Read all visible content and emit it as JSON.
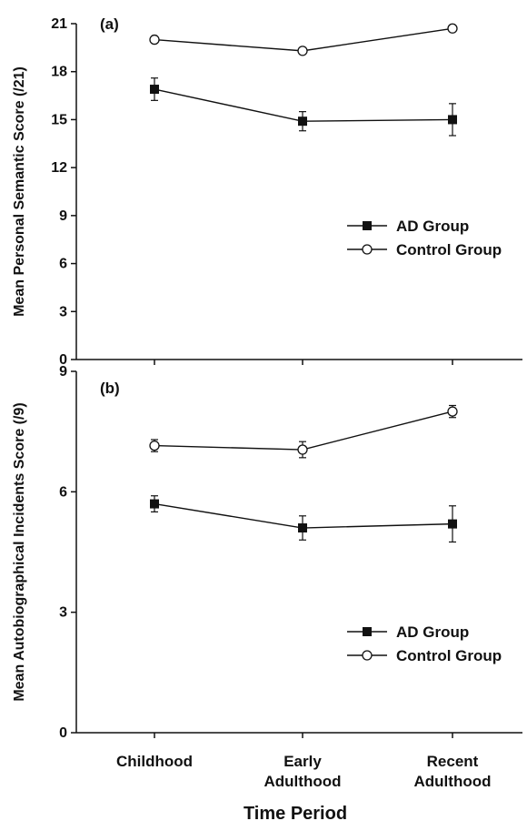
{
  "chart_data": [
    {
      "type": "line",
      "panel_label": "(a)",
      "categories": [
        "Childhood",
        "Early Adulthood",
        "Recent Adulthood"
      ],
      "ylabel": "Mean Personal Semantic Score (/21)",
      "ylim": [
        0,
        21
      ],
      "yticks": [
        0,
        3,
        6,
        9,
        12,
        15,
        18,
        21
      ],
      "legend_position": "right-middle",
      "grid": false,
      "series": [
        {
          "name": "AD Group",
          "marker": "filled-square",
          "values": [
            16.9,
            14.9,
            15.0
          ],
          "error": [
            0.7,
            0.6,
            1.0
          ]
        },
        {
          "name": "Control Group",
          "marker": "open-circle",
          "values": [
            20.0,
            19.3,
            20.7
          ],
          "error": [
            0,
            0,
            0
          ]
        }
      ]
    },
    {
      "type": "line",
      "panel_label": "(b)",
      "categories": [
        "Childhood",
        "Early Adulthood",
        "Recent Adulthood"
      ],
      "ylabel": "Mean Autobiographical Incidents Score (/9)",
      "ylim": [
        0,
        9
      ],
      "yticks": [
        0,
        3,
        6,
        9
      ],
      "legend_position": "lower-right",
      "grid": false,
      "series": [
        {
          "name": "AD Group",
          "marker": "filled-square",
          "values": [
            5.7,
            5.1,
            5.2
          ],
          "error": [
            0.2,
            0.3,
            0.45
          ]
        },
        {
          "name": "Control Group",
          "marker": "open-circle",
          "values": [
            7.15,
            7.05,
            8.0
          ],
          "error": [
            0.15,
            0.2,
            0.15
          ]
        }
      ]
    }
  ],
  "xaxis": {
    "category_lines": [
      [
        "Childhood"
      ],
      [
        "Early",
        "Adulthood"
      ],
      [
        "Recent",
        "Adulthood"
      ]
    ],
    "title": "Time Period"
  }
}
